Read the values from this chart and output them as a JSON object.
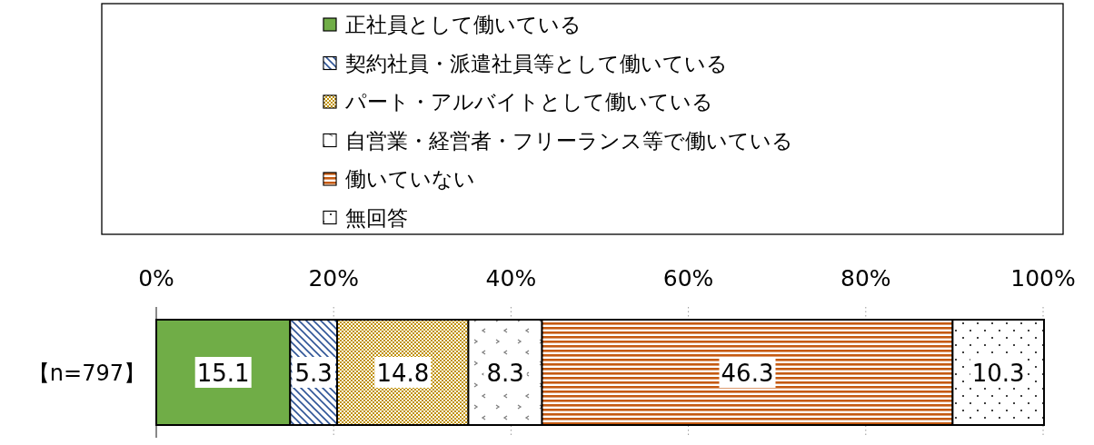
{
  "chart_data": {
    "type": "bar",
    "orientation": "horizontal",
    "stacked": true,
    "categories": [
      "【n=797】"
    ],
    "series": [
      {
        "name": "正社員として働いている",
        "color": "#70ad47",
        "values": [
          15.1
        ]
      },
      {
        "name": "契約社員・派遣社員等として働いている",
        "color": "#2f5597",
        "values": [
          5.3
        ]
      },
      {
        "name": "パート・アルバイトとして働いている",
        "color": "#bf9000",
        "values": [
          14.8
        ]
      },
      {
        "name": "自営業・経営者・フリーランス等で働いている",
        "color": "#7f7f7f",
        "values": [
          8.3
        ]
      },
      {
        "name": "働いていない",
        "color": "#c55a11",
        "values": [
          46.3
        ]
      },
      {
        "name": "無回答",
        "color": "#404040",
        "values": [
          10.3
        ]
      }
    ],
    "xlim": [
      0,
      100
    ],
    "xticks": [
      {
        "value": 0,
        "label": "0%"
      },
      {
        "value": 20,
        "label": "20%"
      },
      {
        "value": 40,
        "label": "40%"
      },
      {
        "value": 60,
        "label": "60%"
      },
      {
        "value": 80,
        "label": "80%"
      },
      {
        "value": 100,
        "label": "100%"
      }
    ],
    "grid": "x",
    "legend": "top",
    "data_labels": true
  }
}
